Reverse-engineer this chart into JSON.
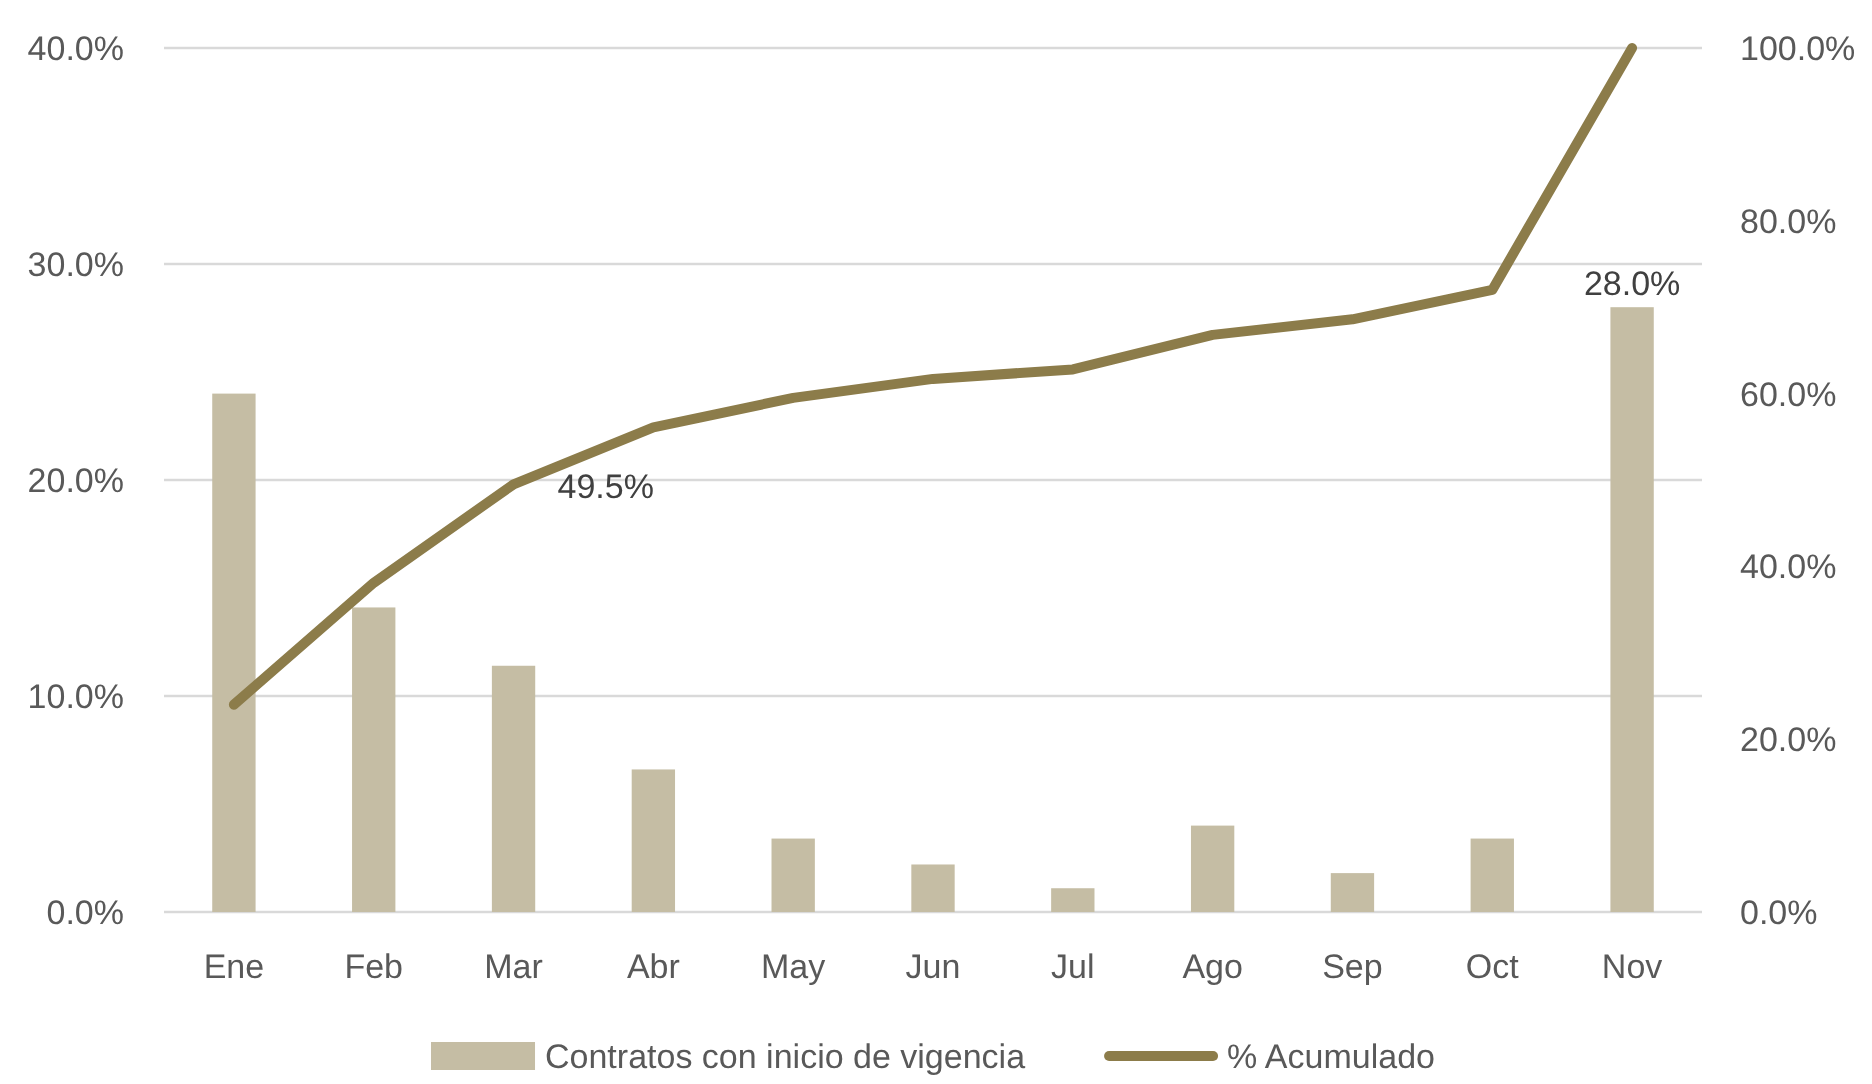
{
  "chart_data": {
    "type": "bar",
    "categories": [
      "Ene",
      "Feb",
      "Mar",
      "Abr",
      "May",
      "Jun",
      "Jul",
      "Ago",
      "Sep",
      "Oct",
      "Nov"
    ],
    "series": [
      {
        "name": "Contratos con inicio de vigencia",
        "color": "#c5bda4",
        "values": [
          24.0,
          14.1,
          11.4,
          6.6,
          3.4,
          2.2,
          1.1,
          4.0,
          1.8,
          3.4,
          28.0
        ],
        "value_labels": [
          null,
          null,
          null,
          null,
          null,
          null,
          null,
          null,
          null,
          null,
          "28.0%"
        ]
      },
      {
        "name": "% Acumulado",
        "type": "line",
        "axis": "y2",
        "color": "#8c7c4a",
        "line_style": "solid",
        "values": [
          24.0,
          38.1,
          49.5,
          56.1,
          59.5,
          61.7,
          62.8,
          66.8,
          68.6,
          72.0,
          100.0
        ],
        "value_labels": [
          null,
          null,
          "49.5%",
          null,
          null,
          null,
          null,
          null,
          null,
          null,
          null
        ]
      }
    ],
    "ylim": [
      0,
      40
    ],
    "yticks": [
      {
        "value": 0,
        "label": "0.0%"
      },
      {
        "value": 10,
        "label": "10.0%"
      },
      {
        "value": 20,
        "label": "20.0%"
      },
      {
        "value": 30,
        "label": "30.0%"
      },
      {
        "value": 40,
        "label": "40.0%"
      }
    ],
    "y2lim": [
      0,
      100
    ],
    "y2ticks": [
      {
        "value": 0,
        "label": "0.0%"
      },
      {
        "value": 20,
        "label": "20.0%"
      },
      {
        "value": 40,
        "label": "40.0%"
      },
      {
        "value": 60,
        "label": "60.0%"
      },
      {
        "value": 80,
        "label": "80.0%"
      },
      {
        "value": 100,
        "label": "100.0%"
      }
    ],
    "grid": "y",
    "legend": "bottom"
  }
}
